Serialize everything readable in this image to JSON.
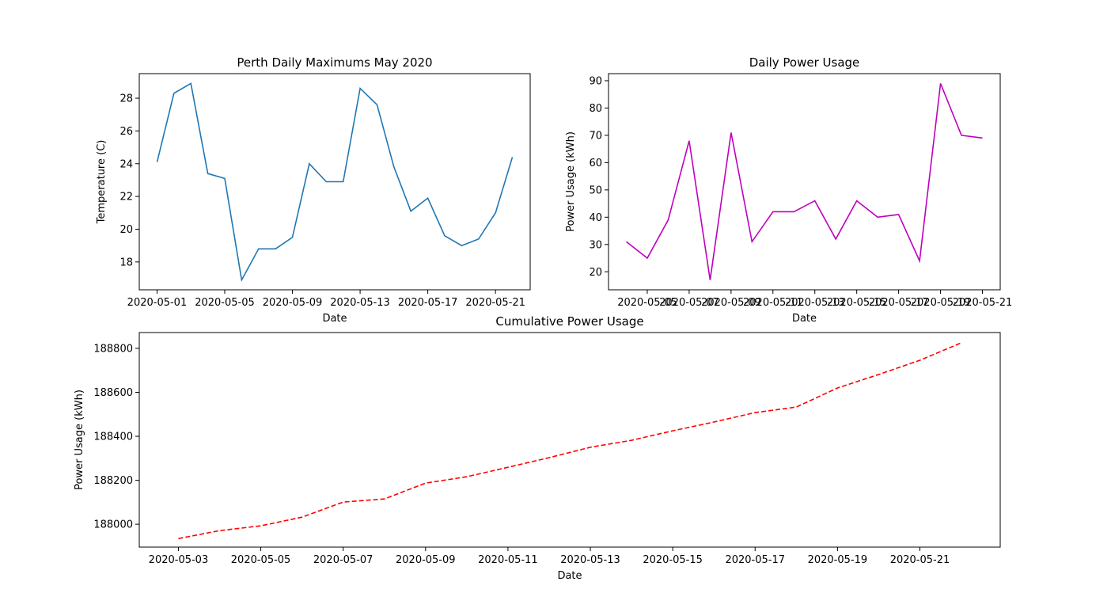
{
  "chart_data": [
    {
      "type": "line",
      "title": "Perth Daily Maximums May 2020",
      "xlabel": "Date",
      "ylabel": "Temperature (C)",
      "color": "#1f77b4",
      "linestyle": "solid",
      "x": [
        "2020-05-01",
        "2020-05-02",
        "2020-05-03",
        "2020-05-04",
        "2020-05-05",
        "2020-05-06",
        "2020-05-07",
        "2020-05-08",
        "2020-05-09",
        "2020-05-10",
        "2020-05-11",
        "2020-05-12",
        "2020-05-13",
        "2020-05-14",
        "2020-05-15",
        "2020-05-16",
        "2020-05-17",
        "2020-05-18",
        "2020-05-19",
        "2020-05-20",
        "2020-05-21",
        "2020-05-22"
      ],
      "values": [
        24.1,
        28.3,
        28.9,
        23.4,
        23.1,
        16.9,
        18.8,
        18.8,
        19.5,
        24.0,
        22.9,
        22.9,
        28.6,
        27.6,
        23.8,
        21.1,
        21.9,
        19.6,
        19.0,
        19.4,
        21.0,
        24.4
      ],
      "xlim": [
        "2020-04-29T22:48:00Z",
        "2020-05-23T01:12:00Z"
      ],
      "xticks": [
        "2020-05-01",
        "2020-05-05",
        "2020-05-09",
        "2020-05-13",
        "2020-05-17",
        "2020-05-21"
      ],
      "ylim": [
        16.3,
        29.5
      ],
      "yticks": [
        18,
        20,
        22,
        24,
        26,
        28
      ]
    },
    {
      "type": "line",
      "title": "Daily Power Usage",
      "xlabel": "Date",
      "ylabel": "Power Usage (kWh)",
      "color": "#bf00bf",
      "linestyle": "solid",
      "x": [
        "2020-05-04",
        "2020-05-05",
        "2020-05-06",
        "2020-05-07",
        "2020-05-08",
        "2020-05-09",
        "2020-05-10",
        "2020-05-11",
        "2020-05-12",
        "2020-05-13",
        "2020-05-14",
        "2020-05-15",
        "2020-05-16",
        "2020-05-17",
        "2020-05-18",
        "2020-05-19",
        "2020-05-20",
        "2020-05-21"
      ],
      "values": [
        31,
        25,
        39,
        68,
        17,
        71,
        31,
        42,
        42,
        46,
        32,
        46,
        40,
        41,
        24,
        89,
        70,
        69
      ],
      "xlim": [
        "2020-05-03T03:36:00Z",
        "2020-05-21T20:24:00Z"
      ],
      "xticks": [
        "2020-05-05",
        "2020-05-07",
        "2020-05-09",
        "2020-05-11",
        "2020-05-13",
        "2020-05-15",
        "2020-05-17",
        "2020-05-19",
        "2020-05-21"
      ],
      "ylim": [
        13.4,
        92.6
      ],
      "yticks": [
        20,
        30,
        40,
        50,
        60,
        70,
        80,
        90
      ]
    },
    {
      "type": "line",
      "title": "Cumulative Power Usage",
      "xlabel": "Date",
      "ylabel": "Power Usage (kWh)",
      "color": "#ff0000",
      "linestyle": "dashed",
      "x": [
        "2020-05-03",
        "2020-05-04",
        "2020-05-05",
        "2020-05-06",
        "2020-05-07",
        "2020-05-08",
        "2020-05-09",
        "2020-05-10",
        "2020-05-11",
        "2020-05-12",
        "2020-05-13",
        "2020-05-14",
        "2020-05-15",
        "2020-05-16",
        "2020-05-17",
        "2020-05-18",
        "2020-05-19",
        "2020-05-20",
        "2020-05-21",
        "2020-05-22"
      ],
      "values": [
        187935,
        187971,
        187993,
        188032,
        188101,
        188115,
        188187,
        188216,
        188259,
        188303,
        188350,
        188382,
        188425,
        188465,
        188508,
        188533,
        188620,
        188681,
        188746,
        188825
      ],
      "xlim": [
        "2020-05-02T01:12:00Z",
        "2020-05-22T22:48:00Z"
      ],
      "xticks": [
        "2020-05-03",
        "2020-05-05",
        "2020-05-07",
        "2020-05-09",
        "2020-05-11",
        "2020-05-13",
        "2020-05-15",
        "2020-05-17",
        "2020-05-19",
        "2020-05-21"
      ],
      "ylim": [
        187896,
        188872
      ],
      "yticks": [
        188000,
        188200,
        188400,
        188600,
        188800
      ]
    }
  ]
}
